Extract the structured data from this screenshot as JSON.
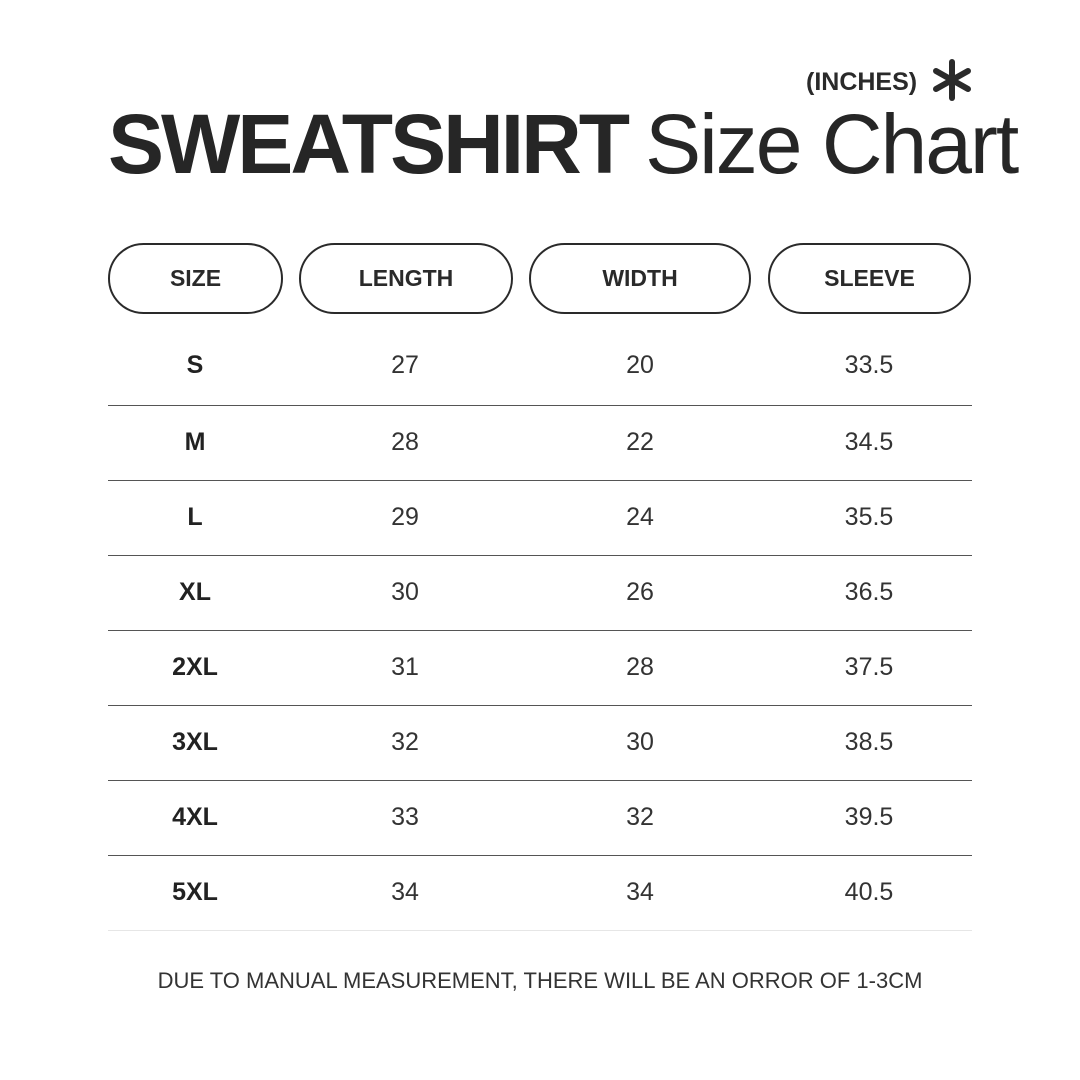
{
  "header": {
    "unit": "(INCHES)",
    "unit_icon": "asterisk-icon",
    "title_bold": "SWEATSHIRT",
    "title_light": "Size Chart"
  },
  "table": {
    "columns": [
      "SIZE",
      "LENGTH",
      "WIDTH",
      "SLEEVE"
    ],
    "rows": [
      [
        "S",
        "27",
        "20",
        "33.5"
      ],
      [
        "M",
        "28",
        "22",
        "34.5"
      ],
      [
        "L",
        "29",
        "24",
        "35.5"
      ],
      [
        "XL",
        "30",
        "26",
        "36.5"
      ],
      [
        "2XL",
        "31",
        "28",
        "37.5"
      ],
      [
        "3XL",
        "32",
        "30",
        "38.5"
      ],
      [
        "4XL",
        "33",
        "32",
        "39.5"
      ],
      [
        "5XL",
        "34",
        "34",
        "40.5"
      ]
    ]
  },
  "footer": {
    "note": "DUE TO MANUAL MEASUREMENT, THERE WILL BE AN ORROR OF 1-3CM"
  }
}
